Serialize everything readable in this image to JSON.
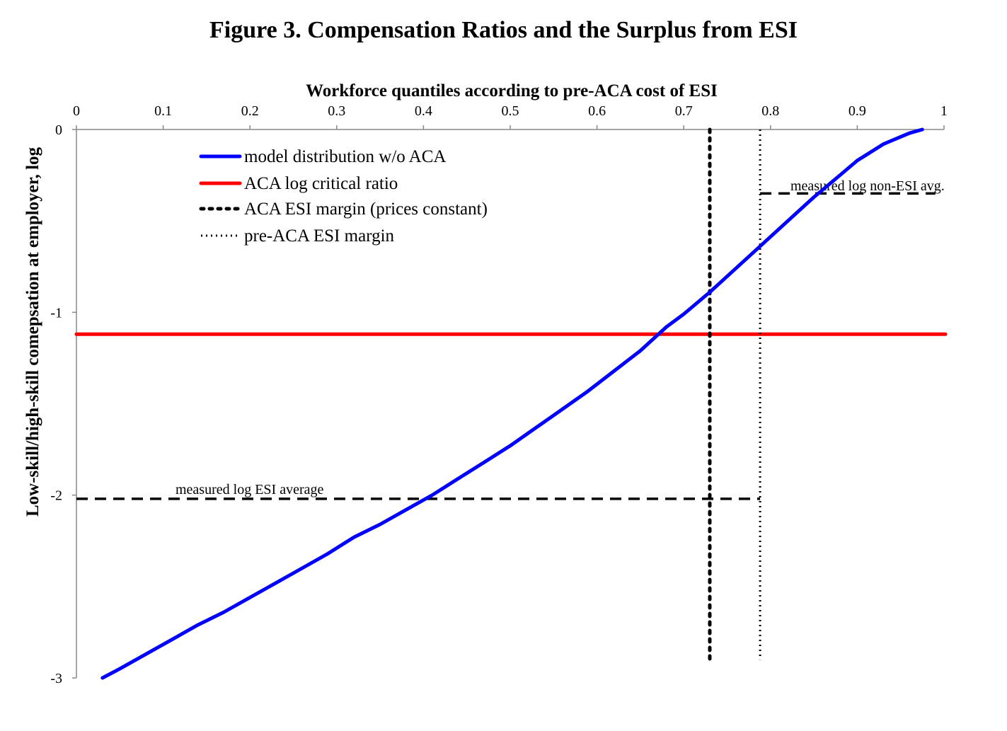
{
  "title": "Figure 3.  Compensation Ratios and the Surplus from ESI",
  "chart_data": {
    "type": "line",
    "title": "Figure 3.  Compensation Ratios and the Surplus from ESI",
    "xlabel": "Workforce quantiles according to pre-ACA cost of ESI",
    "ylabel": "Low-skill/high-skill comepsation at employer, log",
    "xlim": [
      0,
      1
    ],
    "ylim": [
      -3,
      0
    ],
    "x_axis_position": "top",
    "x_ticks": [
      "0",
      "0.1",
      "0.2",
      "0.3",
      "0.4",
      "0.5",
      "0.6",
      "0.7",
      "0.8",
      "0.9",
      "1"
    ],
    "y_ticks": [
      "0",
      "-1",
      "-2",
      "-3"
    ],
    "grid": false,
    "legend_position": "upper-left",
    "series": [
      {
        "name": "model distribution w/o ACA",
        "color": "#0000ff",
        "style": "solid",
        "x": [
          0.03,
          0.05,
          0.08,
          0.11,
          0.14,
          0.17,
          0.2,
          0.23,
          0.26,
          0.29,
          0.31,
          0.32,
          0.35,
          0.38,
          0.41,
          0.44,
          0.47,
          0.5,
          0.53,
          0.56,
          0.59,
          0.62,
          0.65,
          0.68,
          0.7,
          0.73,
          0.76,
          0.79,
          0.82,
          0.85,
          0.88,
          0.9,
          0.93,
          0.96,
          0.975
        ],
        "y": [
          -3.0,
          -2.95,
          -2.87,
          -2.79,
          -2.71,
          -2.64,
          -2.56,
          -2.48,
          -2.4,
          -2.32,
          -2.26,
          -2.23,
          -2.16,
          -2.08,
          -2.0,
          -1.91,
          -1.82,
          -1.73,
          -1.63,
          -1.53,
          -1.43,
          -1.32,
          -1.21,
          -1.08,
          -1.01,
          -0.89,
          -0.76,
          -0.63,
          -0.5,
          -0.37,
          -0.25,
          -0.17,
          -0.08,
          -0.02,
          0.0
        ]
      },
      {
        "name": "ACA log critical ratio",
        "color": "#ff0000",
        "style": "solid",
        "x": [
          0,
          1
        ],
        "y": [
          -1.12,
          -1.12
        ]
      },
      {
        "name": "ACA ESI margin (prices constant)",
        "color": "#000000",
        "style": "dotted-bold",
        "x": [
          0.73,
          0.73
        ],
        "y": [
          0.0,
          -2.9
        ]
      },
      {
        "name": "pre-ACA ESI margin",
        "color": "#000000",
        "style": "dotted",
        "x": [
          0.788,
          0.788
        ],
        "y": [
          0.0,
          -2.9
        ]
      }
    ],
    "annotations": [
      {
        "text": "measured log non-ESI avg.",
        "x0": 0.788,
        "x1": 0.99,
        "y": -0.35
      },
      {
        "text": "measured log ESI average",
        "x0": 0,
        "x1": 0.788,
        "y": -2.02
      }
    ]
  }
}
